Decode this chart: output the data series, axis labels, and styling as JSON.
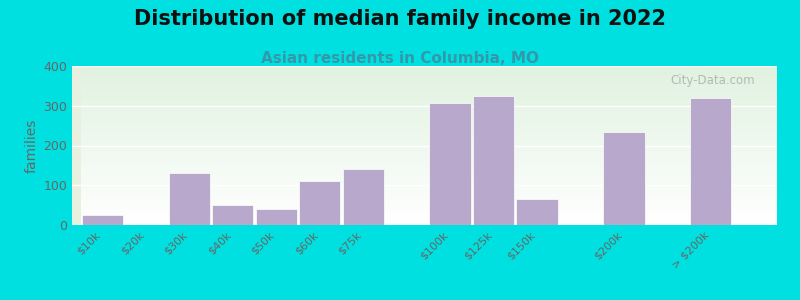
{
  "title": "Distribution of median family income in 2022",
  "subtitle": "Asian residents in Columbia, MO",
  "ylabel": "families",
  "categories": [
    "$10k",
    "$20k",
    "$30k",
    "$40k",
    "$50k",
    "$60k",
    "$75k",
    "$100k",
    "$125k",
    "$150k",
    "$200k",
    "> $200k"
  ],
  "values": [
    25,
    0,
    130,
    50,
    40,
    110,
    140,
    308,
    325,
    65,
    235,
    320
  ],
  "positions": [
    0,
    1,
    2,
    3,
    4,
    5,
    6,
    8,
    9,
    10,
    12,
    14
  ],
  "widths": [
    1,
    1,
    1,
    1,
    1,
    1,
    1,
    1,
    1,
    1,
    1,
    1
  ],
  "bar_color": "#b8a8cc",
  "background_outer": "#00e0e0",
  "plot_bg_color": "#e8f0e0",
  "ylim": [
    0,
    400
  ],
  "yticks": [
    0,
    100,
    200,
    300,
    400
  ],
  "title_fontsize": 15,
  "subtitle_fontsize": 11,
  "subtitle_color": "#3399aa",
  "ylabel_fontsize": 10,
  "watermark": "City-Data.com",
  "tick_label_color": "#666666",
  "grid_color": "#ffffff",
  "title_color": "#111111"
}
